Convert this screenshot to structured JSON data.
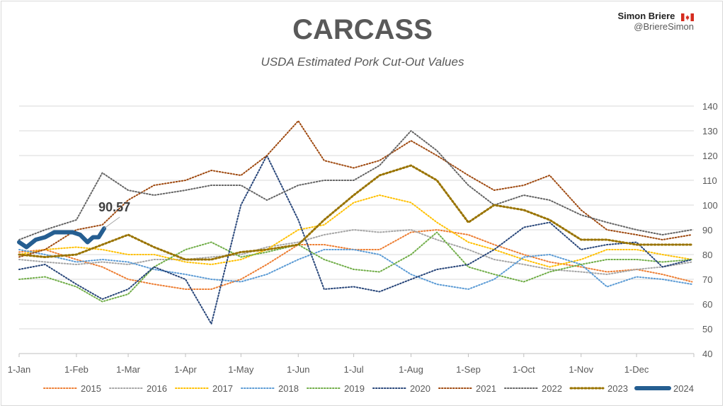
{
  "header": {
    "title": "CARCASS",
    "subtitle": "USDA Estimated Pork Cut-Out Values",
    "author_name": "Simon Briere",
    "author_handle": "@BriereSimon"
  },
  "colors": {
    "2015": "#ed7d31",
    "2016": "#a5a5a5",
    "2017": "#ffc000",
    "2018": "#5b9bd5",
    "2019": "#70ad47",
    "2020": "#264478",
    "2021": "#9e480e",
    "2022": "#636363",
    "2023": "#997300",
    "2024": "#255e91"
  },
  "chart_data": {
    "type": "line",
    "title": "CARCASS",
    "subtitle": "USDA Estimated Pork Cut-Out Values",
    "x_axis_type": "day-of-year",
    "x_ticks": [
      "1-Jan",
      "1-Feb",
      "1-Mar",
      "1-Apr",
      "1-May",
      "1-Jun",
      "1-Jul",
      "1-Aug",
      "1-Sep",
      "1-Oct",
      "1-Nov",
      "1-Dec"
    ],
    "y_ticks": [
      40,
      50,
      60,
      70,
      80,
      90,
      100,
      110,
      120,
      130,
      140
    ],
    "ylim": [
      40,
      140
    ],
    "y_axis_position": "right",
    "grid": true,
    "legend_position": "bottom",
    "annotation": {
      "text": "90.57",
      "series": "2024",
      "date": "16-Feb",
      "value": 90.57
    },
    "series": [
      {
        "name": "2015",
        "values": [
          [
            "1-Jan",
            81
          ],
          [
            "15-Jan",
            82
          ],
          [
            "1-Feb",
            78
          ],
          [
            "15-Feb",
            75
          ],
          [
            "1-Mar",
            70
          ],
          [
            "15-Mar",
            68
          ],
          [
            "1-Apr",
            66
          ],
          [
            "15-Apr",
            66
          ],
          [
            "1-May",
            70
          ],
          [
            "15-May",
            76
          ],
          [
            "1-Jun",
            84
          ],
          [
            "15-Jun",
            84
          ],
          [
            "1-Jul",
            82
          ],
          [
            "15-Jul",
            82
          ],
          [
            "1-Aug",
            89
          ],
          [
            "15-Aug",
            90
          ],
          [
            "1-Sep",
            88
          ],
          [
            "15-Sep",
            84
          ],
          [
            "1-Oct",
            80
          ],
          [
            "15-Oct",
            77
          ],
          [
            "1-Nov",
            75
          ],
          [
            "15-Nov",
            73
          ],
          [
            "1-Dec",
            74
          ],
          [
            "15-Dec",
            72
          ],
          [
            "31-Dec",
            69
          ]
        ]
      },
      {
        "name": "2016",
        "values": [
          [
            "1-Jan",
            78
          ],
          [
            "15-Jan",
            77
          ],
          [
            "1-Feb",
            76
          ],
          [
            "15-Feb",
            77
          ],
          [
            "1-Mar",
            76
          ],
          [
            "15-Mar",
            78
          ],
          [
            "1-Apr",
            78
          ],
          [
            "15-Apr",
            79
          ],
          [
            "1-May",
            80
          ],
          [
            "15-May",
            83
          ],
          [
            "1-Jun",
            85
          ],
          [
            "15-Jun",
            88
          ],
          [
            "1-Jul",
            90
          ],
          [
            "15-Jul",
            89
          ],
          [
            "1-Aug",
            90
          ],
          [
            "15-Aug",
            86
          ],
          [
            "1-Sep",
            82
          ],
          [
            "15-Sep",
            78
          ],
          [
            "1-Oct",
            76
          ],
          [
            "15-Oct",
            74
          ],
          [
            "1-Nov",
            73
          ],
          [
            "15-Nov",
            72
          ],
          [
            "1-Dec",
            74
          ],
          [
            "15-Dec",
            75
          ],
          [
            "31-Dec",
            77
          ]
        ]
      },
      {
        "name": "2017",
        "values": [
          [
            "1-Jan",
            80
          ],
          [
            "15-Jan",
            82
          ],
          [
            "1-Feb",
            83
          ],
          [
            "15-Feb",
            82
          ],
          [
            "1-Mar",
            80
          ],
          [
            "15-Mar",
            80
          ],
          [
            "1-Apr",
            77
          ],
          [
            "15-Apr",
            76
          ],
          [
            "1-May",
            78
          ],
          [
            "15-May",
            82
          ],
          [
            "1-Jun",
            90
          ],
          [
            "15-Jun",
            92
          ],
          [
            "1-Jul",
            101
          ],
          [
            "15-Jul",
            104
          ],
          [
            "1-Aug",
            101
          ],
          [
            "15-Aug",
            93
          ],
          [
            "1-Sep",
            85
          ],
          [
            "15-Sep",
            82
          ],
          [
            "1-Oct",
            78
          ],
          [
            "15-Oct",
            75
          ],
          [
            "1-Nov",
            78
          ],
          [
            "15-Nov",
            82
          ],
          [
            "1-Dec",
            82
          ],
          [
            "15-Dec",
            80
          ],
          [
            "31-Dec",
            78
          ]
        ]
      },
      {
        "name": "2018",
        "values": [
          [
            "1-Jan",
            82
          ],
          [
            "15-Jan",
            80
          ],
          [
            "1-Feb",
            77
          ],
          [
            "15-Feb",
            78
          ],
          [
            "1-Mar",
            77
          ],
          [
            "15-Mar",
            74
          ],
          [
            "1-Apr",
            72
          ],
          [
            "15-Apr",
            70
          ],
          [
            "1-May",
            69
          ],
          [
            "15-May",
            72
          ],
          [
            "1-Jun",
            78
          ],
          [
            "15-Jun",
            82
          ],
          [
            "1-Jul",
            82
          ],
          [
            "15-Jul",
            80
          ],
          [
            "1-Aug",
            72
          ],
          [
            "15-Aug",
            68
          ],
          [
            "1-Sep",
            66
          ],
          [
            "15-Sep",
            70
          ],
          [
            "1-Oct",
            79
          ],
          [
            "15-Oct",
            80
          ],
          [
            "1-Nov",
            76
          ],
          [
            "15-Nov",
            67
          ],
          [
            "1-Dec",
            71
          ],
          [
            "15-Dec",
            70
          ],
          [
            "31-Dec",
            68
          ]
        ]
      },
      {
        "name": "2019",
        "values": [
          [
            "1-Jan",
            70
          ],
          [
            "15-Jan",
            71
          ],
          [
            "1-Feb",
            67
          ],
          [
            "15-Feb",
            61
          ],
          [
            "1-Mar",
            64
          ],
          [
            "15-Mar",
            75
          ],
          [
            "1-Apr",
            82
          ],
          [
            "15-Apr",
            85
          ],
          [
            "1-May",
            79
          ],
          [
            "15-May",
            81
          ],
          [
            "1-Jun",
            84
          ],
          [
            "15-Jun",
            78
          ],
          [
            "1-Jul",
            74
          ],
          [
            "15-Jul",
            73
          ],
          [
            "1-Aug",
            80
          ],
          [
            "15-Aug",
            89
          ],
          [
            "1-Sep",
            75
          ],
          [
            "15-Sep",
            72
          ],
          [
            "1-Oct",
            69
          ],
          [
            "15-Oct",
            73
          ],
          [
            "1-Nov",
            76
          ],
          [
            "15-Nov",
            78
          ],
          [
            "1-Dec",
            78
          ],
          [
            "15-Dec",
            77
          ],
          [
            "31-Dec",
            78
          ]
        ]
      },
      {
        "name": "2020",
        "values": [
          [
            "1-Jan",
            74
          ],
          [
            "15-Jan",
            76
          ],
          [
            "1-Feb",
            68
          ],
          [
            "15-Feb",
            62
          ],
          [
            "1-Mar",
            66
          ],
          [
            "15-Mar",
            75
          ],
          [
            "1-Apr",
            70
          ],
          [
            "15-Apr",
            52
          ],
          [
            "1-May",
            100
          ],
          [
            "15-May",
            120
          ],
          [
            "1-Jun",
            94
          ],
          [
            "15-Jun",
            66
          ],
          [
            "1-Jul",
            67
          ],
          [
            "15-Jul",
            65
          ],
          [
            "1-Aug",
            70
          ],
          [
            "15-Aug",
            74
          ],
          [
            "1-Sep",
            76
          ],
          [
            "15-Sep",
            82
          ],
          [
            "1-Oct",
            91
          ],
          [
            "15-Oct",
            93
          ],
          [
            "1-Nov",
            82
          ],
          [
            "15-Nov",
            84
          ],
          [
            "1-Dec",
            85
          ],
          [
            "15-Dec",
            75
          ],
          [
            "31-Dec",
            78
          ]
        ]
      },
      {
        "name": "2021",
        "values": [
          [
            "1-Jan",
            79
          ],
          [
            "15-Jan",
            82
          ],
          [
            "1-Feb",
            90
          ],
          [
            "15-Feb",
            92
          ],
          [
            "1-Mar",
            102
          ],
          [
            "15-Mar",
            108
          ],
          [
            "1-Apr",
            110
          ],
          [
            "15-Apr",
            114
          ],
          [
            "1-May",
            112
          ],
          [
            "15-May",
            120
          ],
          [
            "1-Jun",
            134
          ],
          [
            "15-Jun",
            118
          ],
          [
            "1-Jul",
            115
          ],
          [
            "15-Jul",
            118
          ],
          [
            "1-Aug",
            126
          ],
          [
            "15-Aug",
            120
          ],
          [
            "1-Sep",
            112
          ],
          [
            "15-Sep",
            106
          ],
          [
            "1-Oct",
            108
          ],
          [
            "15-Oct",
            112
          ],
          [
            "1-Nov",
            98
          ],
          [
            "15-Nov",
            90
          ],
          [
            "1-Dec",
            88
          ],
          [
            "15-Dec",
            86
          ],
          [
            "31-Dec",
            88
          ]
        ]
      },
      {
        "name": "2022",
        "values": [
          [
            "1-Jan",
            86
          ],
          [
            "15-Jan",
            90
          ],
          [
            "1-Feb",
            94
          ],
          [
            "15-Feb",
            113
          ],
          [
            "1-Mar",
            106
          ],
          [
            "15-Mar",
            104
          ],
          [
            "1-Apr",
            106
          ],
          [
            "15-Apr",
            108
          ],
          [
            "1-May",
            108
          ],
          [
            "15-May",
            102
          ],
          [
            "1-Jun",
            108
          ],
          [
            "15-Jun",
            110
          ],
          [
            "1-Jul",
            110
          ],
          [
            "15-Jul",
            116
          ],
          [
            "1-Aug",
            130
          ],
          [
            "15-Aug",
            122
          ],
          [
            "1-Sep",
            108
          ],
          [
            "15-Sep",
            100
          ],
          [
            "1-Oct",
            104
          ],
          [
            "15-Oct",
            102
          ],
          [
            "1-Nov",
            96
          ],
          [
            "15-Nov",
            93
          ],
          [
            "1-Dec",
            90
          ],
          [
            "15-Dec",
            88
          ],
          [
            "31-Dec",
            90
          ]
        ]
      },
      {
        "name": "2023",
        "values": [
          [
            "1-Jan",
            80
          ],
          [
            "15-Jan",
            79
          ],
          [
            "1-Feb",
            80
          ],
          [
            "15-Feb",
            84
          ],
          [
            "1-Mar",
            88
          ],
          [
            "15-Mar",
            83
          ],
          [
            "1-Apr",
            78
          ],
          [
            "15-Apr",
            78
          ],
          [
            "1-May",
            81
          ],
          [
            "15-May",
            82
          ],
          [
            "1-Jun",
            84
          ],
          [
            "15-Jun",
            94
          ],
          [
            "1-Jul",
            104
          ],
          [
            "15-Jul",
            112
          ],
          [
            "1-Aug",
            116
          ],
          [
            "15-Aug",
            110
          ],
          [
            "1-Sep",
            93
          ],
          [
            "15-Sep",
            100
          ],
          [
            "1-Oct",
            98
          ],
          [
            "15-Oct",
            94
          ],
          [
            "1-Nov",
            86
          ],
          [
            "15-Nov",
            86
          ],
          [
            "1-Dec",
            84
          ],
          [
            "15-Dec",
            84
          ],
          [
            "31-Dec",
            84
          ]
        ]
      },
      {
        "name": "2024",
        "values": [
          [
            "1-Jan",
            85
          ],
          [
            "5-Jan",
            83
          ],
          [
            "10-Jan",
            86
          ],
          [
            "15-Jan",
            87
          ],
          [
            "20-Jan",
            89
          ],
          [
            "25-Jan",
            89
          ],
          [
            "30-Jan",
            89
          ],
          [
            "3-Feb",
            88
          ],
          [
            "7-Feb",
            85
          ],
          [
            "10-Feb",
            87
          ],
          [
            "13-Feb",
            87
          ],
          [
            "16-Feb",
            90.57
          ]
        ]
      }
    ]
  }
}
